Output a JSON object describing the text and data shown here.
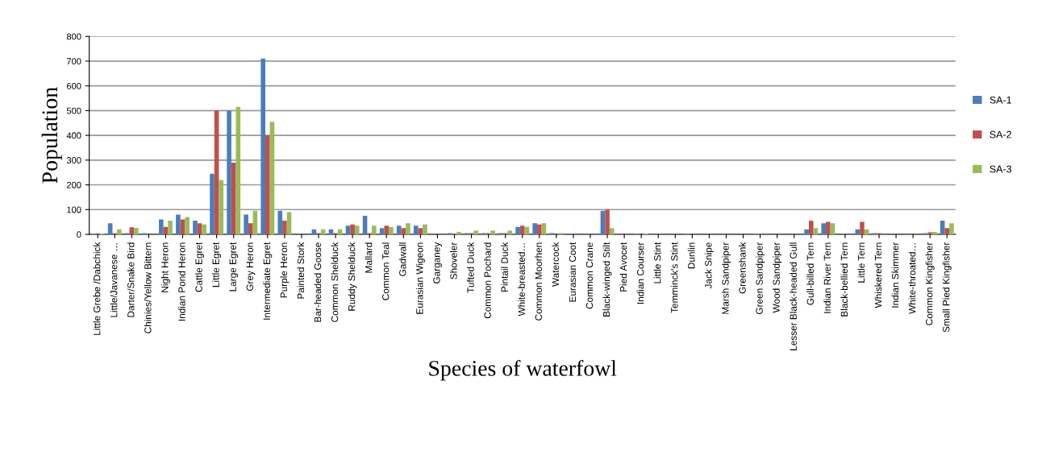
{
  "chart_data": {
    "type": "bar",
    "xlabel": "Species of waterfowl",
    "ylabel": "Population",
    "categories": [
      "Little Grebe /Dabchick",
      "Little/Javanese …",
      "Darter/Snake Bird",
      "Chinies/Yellow Bittern",
      "Night Heron",
      "Indian Pond Heron",
      "Cattle Egret",
      "Little Egret",
      "Large Egret",
      "Grey Heron",
      "Intermediate Egret",
      "Purple Heron",
      "Painted Stork",
      "Bar-headed Goose",
      "Common Shelduck",
      "Ruddy Shelduck",
      "Mallard",
      "Common Teal",
      "Gadwall",
      "Eurasian Wigeon",
      "Garganey",
      "Shoveler",
      "Tufted Duck",
      "Common Pochard",
      "Pintail Duck",
      "White-breasted…",
      "Common Moorhen",
      "Watercock",
      "Eurasian Coot",
      "Common Crane",
      "Black-winged Stilt",
      "Pied Avocet",
      "Indian Courser",
      "Little Stint",
      "Temminck's Stint",
      "Dunlin",
      "Jack Snipe",
      "Marsh Sandpiper",
      "Greenshank",
      "Green Sandpiper",
      "Wood Sandpiper",
      "Lesser Black-headed Gull",
      "Gull-billed Tern",
      "Indian River Tern",
      "Black-bellied Tern",
      "Little Tern",
      "Whiskered Tern",
      "Indian Skimmer",
      "White-throated…",
      "Common Kingfisher",
      "Small Pied Kingfisher"
    ],
    "series": [
      {
        "name": "SA-1",
        "color": "#4a7ebb",
        "values": [
          3,
          45,
          5,
          5,
          60,
          80,
          55,
          245,
          500,
          80,
          710,
          95,
          0,
          20,
          20,
          35,
          75,
          25,
          35,
          35,
          0,
          5,
          5,
          5,
          5,
          30,
          45,
          5,
          0,
          0,
          95,
          0,
          3,
          0,
          0,
          3,
          0,
          0,
          0,
          3,
          0,
          0,
          20,
          45,
          0,
          20,
          5,
          0,
          0,
          5,
          55
        ]
      },
      {
        "name": "SA-2",
        "color": "#c0504d",
        "values": [
          0,
          5,
          28,
          0,
          30,
          60,
          45,
          500,
          290,
          45,
          400,
          55,
          0,
          5,
          5,
          40,
          5,
          35,
          25,
          25,
          0,
          3,
          5,
          5,
          5,
          35,
          40,
          0,
          0,
          0,
          100,
          0,
          0,
          0,
          0,
          0,
          0,
          0,
          0,
          3,
          0,
          0,
          55,
          50,
          0,
          50,
          5,
          0,
          0,
          8,
          25
        ]
      },
      {
        "name": "SA-3",
        "color": "#9bbb59",
        "values": [
          3,
          20,
          25,
          0,
          55,
          70,
          40,
          220,
          515,
          95,
          455,
          90,
          0,
          20,
          20,
          35,
          35,
          30,
          45,
          40,
          0,
          10,
          15,
          15,
          15,
          30,
          45,
          5,
          0,
          0,
          25,
          0,
          3,
          0,
          0,
          0,
          0,
          0,
          0,
          0,
          0,
          0,
          25,
          45,
          0,
          20,
          0,
          0,
          0,
          10,
          45
        ]
      }
    ],
    "ylim": [
      0,
      800
    ],
    "yticks": [
      0,
      100,
      200,
      300,
      400,
      500,
      600,
      700,
      800
    ],
    "grid": "y",
    "legend": "right"
  }
}
